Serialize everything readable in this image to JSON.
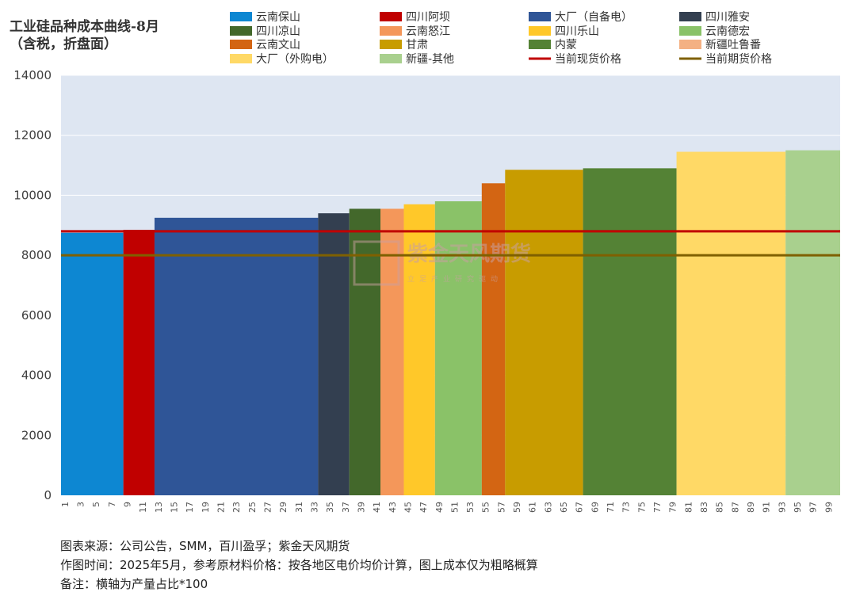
{
  "title_lines": [
    "工业硅品种成本曲线-8月",
    "（含税，折盘面）"
  ],
  "notes": [
    "图表来源：公司公告，SMM，百川盈孚；紫金天风期货",
    "作图时间：2025年5月，参考原材料价格：按各地区电价均价计算，图上成本仅为粗略概算",
    "备注：横轴为产量占比*100"
  ],
  "watermark": {
    "name": "紫金天风期货",
    "slogan": "立足产业研究驱动"
  },
  "chart_data": {
    "type": "bar",
    "variant": "variable-width cost curve",
    "title": "工业硅品种成本曲线-8月（含税，折盘面）",
    "xlabel": "",
    "ylabel": "",
    "xlim": [
      0,
      100
    ],
    "ylim": [
      0,
      14000
    ],
    "yticks": [
      0,
      2000,
      4000,
      6000,
      8000,
      10000,
      12000,
      14000
    ],
    "xticks": [
      "1",
      "3",
      "5",
      "7",
      "9",
      "11",
      "13",
      "15",
      "17",
      "19",
      "21",
      "23",
      "25",
      "27",
      "29",
      "31",
      "33",
      "35",
      "37",
      "39",
      "41",
      "43",
      "45",
      "47",
      "49",
      "51",
      "53",
      "55",
      "57",
      "59",
      "61",
      "63",
      "65",
      "67",
      "69",
      "71",
      "73",
      "75",
      "77",
      "79",
      "81",
      "83",
      "85",
      "87",
      "89",
      "91",
      "93",
      "95",
      "97",
      "99"
    ],
    "grid": true,
    "plot_background": "#dee6f2",
    "legend_position": "top",
    "segments": [
      {
        "name": "云南保山",
        "x_start": 0,
        "x_end": 8,
        "value": 8750,
        "color": "#0d87d2"
      },
      {
        "name": "四川阿坝",
        "x_start": 8,
        "x_end": 12,
        "value": 8850,
        "color": "#c00000"
      },
      {
        "name": "大厂（自备电）",
        "x_start": 12,
        "x_end": 33,
        "value": 9250,
        "color": "#2f5597"
      },
      {
        "name": "四川雅安",
        "x_start": 33,
        "x_end": 37,
        "value": 9400,
        "color": "#333f50"
      },
      {
        "name": "四川凉山",
        "x_start": 37,
        "x_end": 41,
        "value": 9550,
        "color": "#43682b"
      },
      {
        "name": "云南怒江",
        "x_start": 41,
        "x_end": 44,
        "value": 9550,
        "color": "#f4975a"
      },
      {
        "name": "四川乐山",
        "x_start": 44,
        "x_end": 48,
        "value": 9700,
        "color": "#ffc829"
      },
      {
        "name": "云南德宏",
        "x_start": 48,
        "x_end": 54,
        "value": 9800,
        "color": "#8ac268"
      },
      {
        "name": "云南文山",
        "x_start": 54,
        "x_end": 57,
        "value": 10400,
        "color": "#d36513"
      },
      {
        "name": "甘肃",
        "x_start": 57,
        "x_end": 67,
        "value": 10850,
        "color": "#c89c00"
      },
      {
        "name": "内蒙",
        "x_start": 67,
        "x_end": 79,
        "value": 10900,
        "color": "#548235"
      },
      {
        "name": "大厂（外购电）",
        "x_start": 79,
        "x_end": 93,
        "value": 11450,
        "color": "#ffd966"
      },
      {
        "name": "新疆-其他",
        "x_start": 93,
        "x_end": 100,
        "value": 11500,
        "color": "#a9d08e"
      }
    ],
    "extra_legend_entries": [
      {
        "name": "新疆吐鲁番",
        "color": "#f4b183"
      }
    ],
    "lines": [
      {
        "name": "当前现货价格",
        "value": 8800,
        "color": "#c00000"
      },
      {
        "name": "当前期货价格",
        "value": 8000,
        "color": "#7f6000"
      }
    ],
    "legend_rows": [
      [
        "云南保山",
        "四川阿坝",
        "大厂（自备电）",
        "四川雅安"
      ],
      [
        "四川凉山",
        "云南怒江",
        "四川乐山",
        "云南德宏"
      ],
      [
        "云南文山",
        "甘肃",
        "内蒙",
        "新疆吐鲁番"
      ],
      [
        "大厂（外购电）",
        "新疆-其他",
        "当前现货价格",
        "当前期货价格"
      ]
    ]
  }
}
